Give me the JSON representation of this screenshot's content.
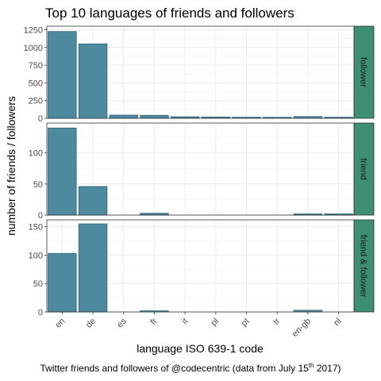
{
  "chart_data": {
    "type": "bar",
    "title": "Top 10 languages of friends and followers",
    "xlabel": "language ISO 639-1 code",
    "ylabel": "number of friends / followers",
    "caption_main": "Twitter friends and followers of @codecentric (data from July 15",
    "caption_sup": "th",
    "caption_end": " 2017)",
    "categories": [
      "en",
      "de",
      "es",
      "fr",
      "it",
      "pl",
      "pt",
      "tr",
      "en-gb",
      "nl"
    ],
    "facets": [
      {
        "name": "follower",
        "values": [
          1225,
          1050,
          45,
          42,
          22,
          18,
          15,
          12,
          25,
          15
        ],
        "ylim": [
          0,
          1300
        ],
        "yticks": [
          0,
          250,
          500,
          750,
          1000,
          1250
        ]
      },
      {
        "name": "friend",
        "values": [
          140,
          46,
          null,
          3,
          null,
          null,
          null,
          null,
          2,
          2
        ],
        "ylim": [
          0,
          148
        ],
        "yticks": [
          0,
          50,
          100
        ]
      },
      {
        "name": "friend & follower",
        "values": [
          103,
          155,
          null,
          2,
          null,
          null,
          null,
          null,
          3,
          null
        ],
        "ylim": [
          0,
          162
        ],
        "yticks": [
          0,
          50,
          100,
          150
        ]
      }
    ],
    "colors": {
      "bar_fill": "#4e8a9f",
      "bar_stroke": "#2f6479",
      "strip_fill": "#3e8e73"
    },
    "grid": true,
    "legend": "none"
  }
}
